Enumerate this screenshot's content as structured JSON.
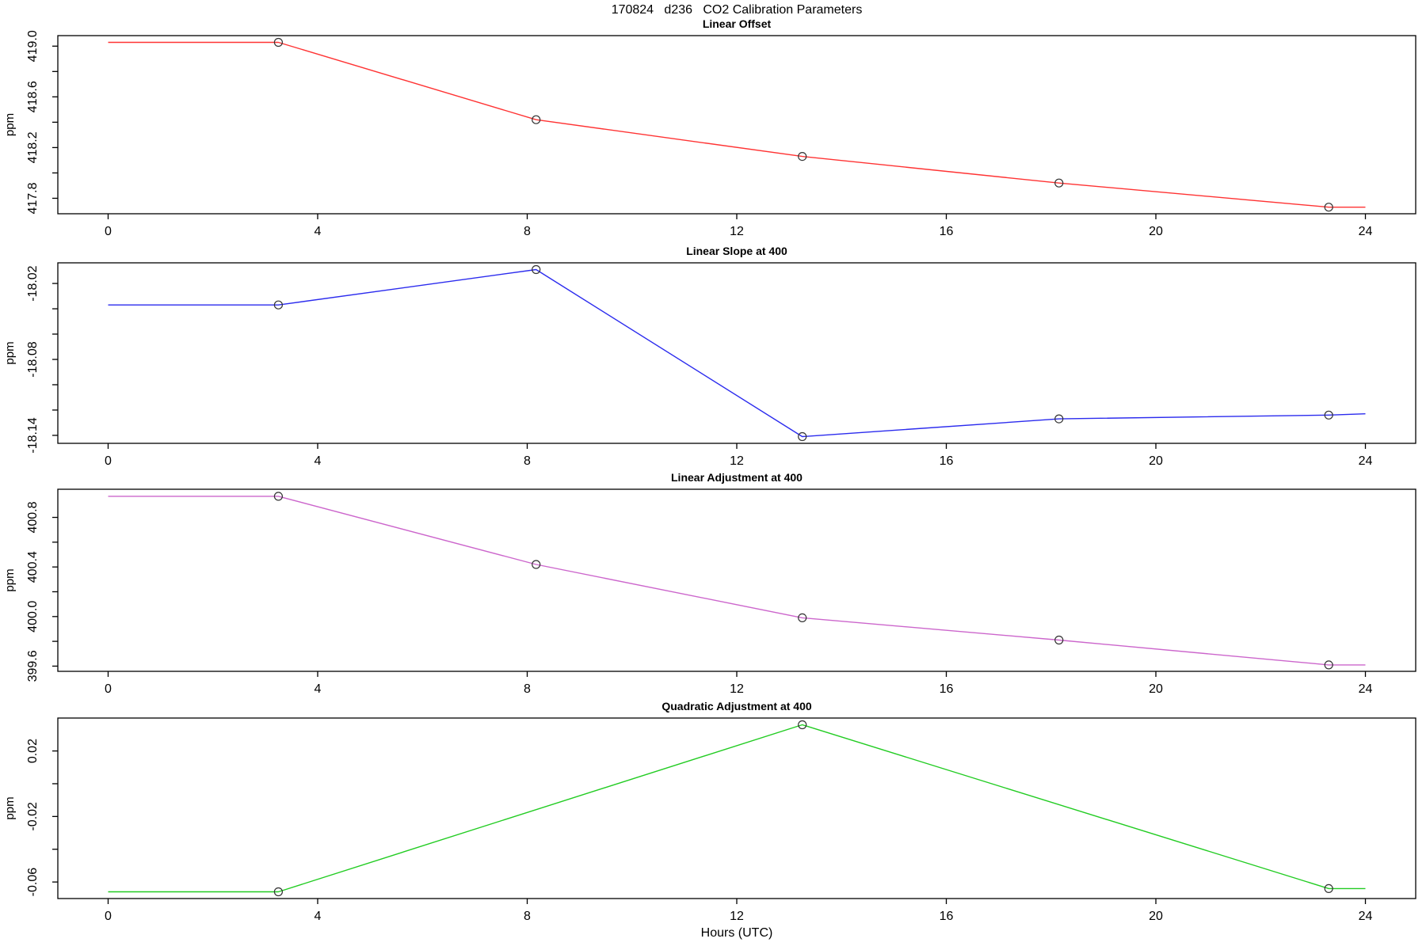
{
  "page": {
    "title": "170824   d236   CO2 Calibration Parameters"
  },
  "x_axis": {
    "label": "Hours (UTC)",
    "ticks": [
      0,
      4,
      8,
      12,
      16,
      20,
      24
    ],
    "xlim": [
      -0.96,
      24.96
    ]
  },
  "chart_data": [
    {
      "type": "line",
      "title": "Linear Offset",
      "ylabel": "ppm",
      "line_color": "#ff3333",
      "marker": "open-circle",
      "x": [
        3.25,
        8.17,
        13.25,
        18.15,
        23.3
      ],
      "y": [
        419.03,
        418.42,
        418.13,
        417.92,
        417.73
      ],
      "line": {
        "x": [
          0,
          3.25,
          8.17,
          13.25,
          18.15,
          23.3,
          24
        ],
        "y": [
          419.03,
          419.03,
          418.42,
          418.13,
          417.92,
          417.73,
          417.73
        ]
      },
      "ylim": [
        417.678,
        419.083
      ],
      "yticks": [
        {
          "v": 419.0,
          "label": "419.0"
        },
        {
          "v": 418.8,
          "label": ""
        },
        {
          "v": 418.6,
          "label": "418.6"
        },
        {
          "v": 418.4,
          "label": ""
        },
        {
          "v": 418.2,
          "label": "418.2"
        },
        {
          "v": 418.0,
          "label": ""
        },
        {
          "v": 417.8,
          "label": "417.8"
        }
      ]
    },
    {
      "type": "line",
      "title": "Linear Slope at 400",
      "ylabel": "ppm",
      "line_color": "#2b2bee",
      "marker": "open-circle",
      "x": [
        3.25,
        8.17,
        13.25,
        18.15,
        23.3
      ],
      "y": [
        -18.037,
        -18.009,
        -18.141,
        -18.127,
        -18.124
      ],
      "line": {
        "x": [
          0,
          3.25,
          8.17,
          13.25,
          18.15,
          23.3,
          24
        ],
        "y": [
          -18.037,
          -18.037,
          -18.009,
          -18.141,
          -18.127,
          -18.124,
          -18.123
        ]
      },
      "ylim": [
        -18.1463,
        -18.0037
      ],
      "yticks": [
        {
          "v": -18.02,
          "label": "-18.02"
        },
        {
          "v": -18.04,
          "label": ""
        },
        {
          "v": -18.06,
          "label": ""
        },
        {
          "v": -18.08,
          "label": "-18.08"
        },
        {
          "v": -18.1,
          "label": ""
        },
        {
          "v": -18.12,
          "label": ""
        },
        {
          "v": -18.14,
          "label": "-18.14"
        }
      ]
    },
    {
      "type": "line",
      "title": "Linear Adjustment at 400",
      "ylabel": "ppm",
      "line_color": "#cc66cc",
      "marker": "open-circle",
      "x": [
        3.25,
        8.17,
        13.25,
        18.15,
        23.3
      ],
      "y": [
        400.97,
        400.42,
        399.99,
        399.81,
        399.61
      ],
      "line": {
        "x": [
          0,
          3.25,
          8.17,
          13.25,
          18.15,
          23.3,
          24
        ],
        "y": [
          400.97,
          400.97,
          400.42,
          399.99,
          399.81,
          399.61,
          399.61
        ]
      },
      "ylim": [
        399.558,
        401.027
      ],
      "yticks": [
        {
          "v": 400.8,
          "label": "400.8"
        },
        {
          "v": 400.6,
          "label": ""
        },
        {
          "v": 400.4,
          "label": "400.4"
        },
        {
          "v": 400.2,
          "label": ""
        },
        {
          "v": 400.0,
          "label": "400.0"
        },
        {
          "v": 399.8,
          "label": ""
        },
        {
          "v": 399.6,
          "label": "399.6"
        }
      ]
    },
    {
      "type": "line",
      "title": "Quadratic Adjustment at 400",
      "ylabel": "ppm",
      "line_color": "#22cc22",
      "marker": "open-circle",
      "x": [
        3.25,
        13.25,
        23.3
      ],
      "y": [
        -0.066,
        0.036,
        -0.064
      ],
      "line": {
        "x": [
          0,
          3.25,
          13.25,
          23.3,
          24
        ],
        "y": [
          -0.066,
          -0.066,
          0.036,
          -0.064,
          -0.064
        ]
      },
      "ylim": [
        -0.0701,
        0.0401
      ],
      "yticks": [
        {
          "v": 0.02,
          "label": "0.02"
        },
        {
          "v": 0.0,
          "label": ""
        },
        {
          "v": -0.02,
          "label": "-0.02"
        },
        {
          "v": -0.04,
          "label": ""
        },
        {
          "v": -0.06,
          "label": "-0.06"
        }
      ]
    }
  ]
}
